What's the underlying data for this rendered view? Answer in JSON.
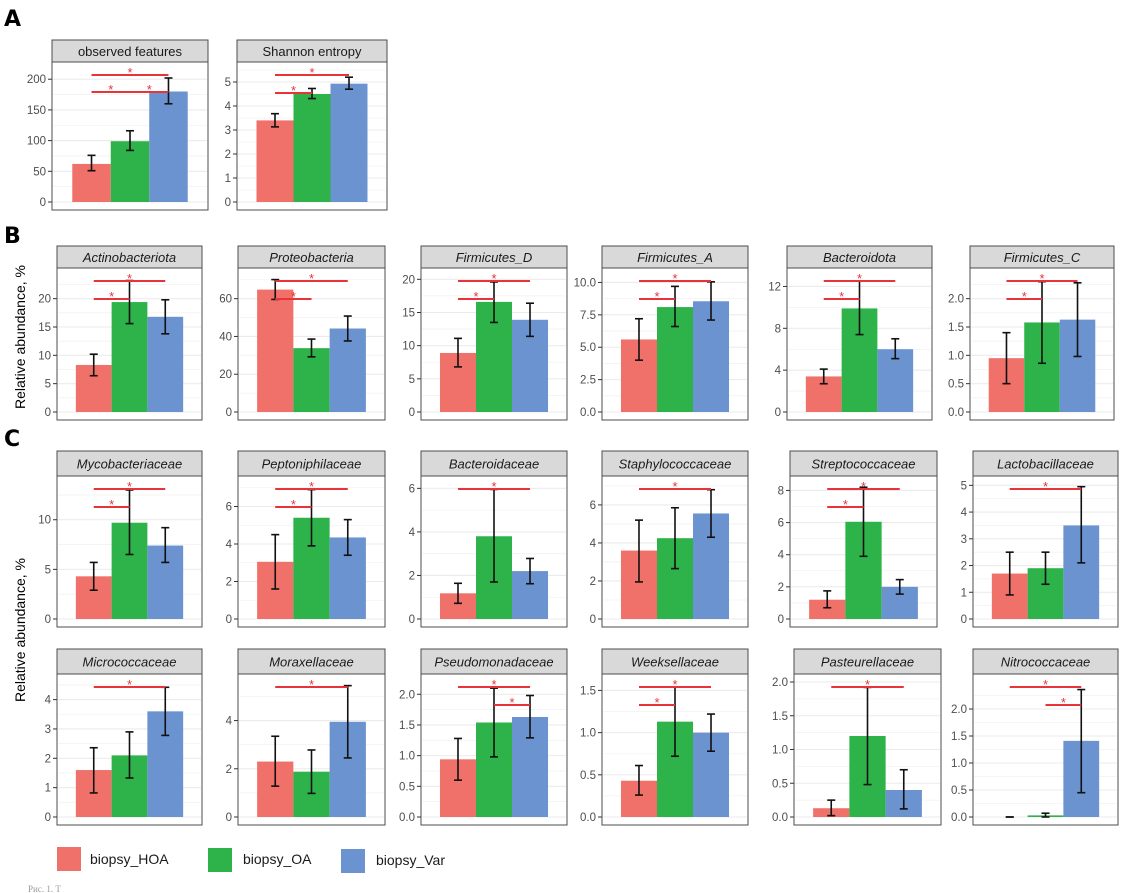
{
  "figure": {
    "panel_labels": [
      "A",
      "B",
      "C"
    ],
    "y_axis_label": "Relative abundance, %",
    "caption_fragment": "Рис. 1. Т",
    "colors": {
      "biopsy_HOA": "#F0706A",
      "biopsy_OA": "#2DB34A",
      "biopsy_Var": "#6B93D0",
      "significance": "#E8333A"
    }
  },
  "legend": [
    {
      "label": "biopsy_HOA",
      "color": "#F0706A"
    },
    {
      "label": "biopsy_OA",
      "color": "#2DB34A"
    },
    {
      "label": "biopsy_Var",
      "color": "#6B93D0"
    }
  ],
  "chart_data": [
    {
      "type": "bar",
      "section": "A",
      "title": "observed  features",
      "italic": false,
      "categories": [
        "biopsy_HOA",
        "biopsy_OA",
        "biopsy_Var"
      ],
      "values": [
        62,
        99,
        180
      ],
      "error_low": [
        51,
        84,
        160
      ],
      "error_high": [
        76,
        116,
        202
      ],
      "yticks": [
        0,
        50,
        100,
        150,
        200
      ],
      "ylim": [
        0,
        215
      ],
      "significance": [
        {
          "pair": [
            0,
            2
          ],
          "label": "*"
        },
        {
          "pair": [
            0,
            1
          ],
          "label": "*"
        },
        {
          "pair": [
            1,
            2
          ],
          "label": "*"
        }
      ]
    },
    {
      "type": "bar",
      "section": "A",
      "title": "Shannon entropy",
      "italic": false,
      "categories": [
        "biopsy_HOA",
        "biopsy_OA",
        "biopsy_Var"
      ],
      "values": [
        3.4,
        4.5,
        4.93
      ],
      "error_low": [
        3.13,
        4.31,
        4.7
      ],
      "error_high": [
        3.68,
        4.73,
        5.2
      ],
      "yticks": [
        0,
        1,
        2,
        3,
        4,
        5
      ],
      "ylim": [
        0,
        5.5
      ],
      "significance": [
        {
          "pair": [
            0,
            2
          ],
          "label": "*"
        },
        {
          "pair": [
            0,
            1
          ],
          "label": "*"
        }
      ]
    },
    {
      "type": "bar",
      "section": "B",
      "title": "Actinobacteriota",
      "italic": true,
      "categories": [
        "biopsy_HOA",
        "biopsy_OA",
        "biopsy_Var"
      ],
      "values": [
        8.3,
        19.4,
        16.8
      ],
      "error_low": [
        6.4,
        15.6,
        13.8
      ],
      "error_high": [
        10.2,
        23.2,
        19.8
      ],
      "yticks": [
        0,
        5,
        10,
        15,
        20
      ],
      "ylim": [
        0,
        24
      ],
      "significance": [
        {
          "pair": [
            0,
            2
          ],
          "label": "*"
        },
        {
          "pair": [
            0,
            1
          ],
          "label": "*"
        }
      ]
    },
    {
      "type": "bar",
      "section": "B",
      "title": "Proteobacteria",
      "italic": true,
      "categories": [
        "biopsy_HOA",
        "biopsy_OA",
        "biopsy_Var"
      ],
      "values": [
        64.8,
        33.8,
        44.2
      ],
      "error_low": [
        59.6,
        29.2,
        37.6
      ],
      "error_high": [
        70.1,
        38.6,
        50.8
      ],
      "yticks": [
        0,
        20,
        40,
        60
      ],
      "ylim": [
        0,
        72
      ],
      "significance": [
        {
          "pair": [
            0,
            2
          ],
          "label": "*"
        },
        {
          "pair": [
            0,
            1
          ],
          "label": "*"
        }
      ]
    },
    {
      "type": "bar",
      "section": "B",
      "title": "Firmicutes_D",
      "italic": true,
      "categories": [
        "biopsy_HOA",
        "biopsy_OA",
        "biopsy_Var"
      ],
      "values": [
        8.9,
        16.6,
        13.9
      ],
      "error_low": [
        6.8,
        13.5,
        11.4
      ],
      "error_high": [
        11.1,
        19.6,
        16.4
      ],
      "yticks": [
        0,
        5,
        10,
        15,
        20
      ],
      "ylim": [
        0,
        20.5
      ],
      "significance": [
        {
          "pair": [
            0,
            2
          ],
          "label": "*"
        },
        {
          "pair": [
            0,
            1
          ],
          "label": "*"
        }
      ]
    },
    {
      "type": "bar",
      "section": "B",
      "title": "Firmicutes_A",
      "italic": true,
      "categories": [
        "biopsy_HOA",
        "biopsy_OA",
        "biopsy_Var"
      ],
      "values": [
        5.6,
        8.1,
        8.55
      ],
      "error_low": [
        4.0,
        6.6,
        7.1
      ],
      "error_high": [
        7.2,
        9.7,
        10.05
      ],
      "yticks": [
        0.0,
        2.5,
        5.0,
        7.5,
        10.0
      ],
      "ytick_labels": [
        "0.0",
        "2.5",
        "5.0",
        "7.5",
        "10.0"
      ],
      "ylim": [
        0,
        10.5
      ],
      "significance": [
        {
          "pair": [
            0,
            2
          ],
          "label": "*"
        },
        {
          "pair": [
            0,
            1
          ],
          "label": "*"
        }
      ]
    },
    {
      "type": "bar",
      "section": "B",
      "title": "Bacteroidota",
      "italic": true,
      "categories": [
        "biopsy_HOA",
        "biopsy_OA",
        "biopsy_Var"
      ],
      "values": [
        3.4,
        9.9,
        6.0
      ],
      "error_low": [
        2.7,
        7.4,
        5.1
      ],
      "error_high": [
        4.1,
        12.5,
        7.0
      ],
      "yticks": [
        0,
        4,
        8,
        12
      ],
      "ylim": [
        0,
        13
      ],
      "significance": [
        {
          "pair": [
            0,
            2
          ],
          "label": "*"
        },
        {
          "pair": [
            0,
            1
          ],
          "label": "*"
        }
      ]
    },
    {
      "type": "bar",
      "section": "B",
      "title": "Firmicutes_C",
      "italic": true,
      "categories": [
        "biopsy_HOA",
        "biopsy_OA",
        "biopsy_Var"
      ],
      "values": [
        0.95,
        1.58,
        1.63
      ],
      "error_low": [
        0.5,
        0.86,
        0.98
      ],
      "error_high": [
        1.4,
        2.3,
        2.28
      ],
      "yticks": [
        0.0,
        0.5,
        1.0,
        1.5,
        2.0
      ],
      "ytick_labels": [
        "0.0",
        "0.5",
        "1.0",
        "1.5",
        "2.0"
      ],
      "ylim": [
        0,
        2.4
      ],
      "significance": [
        {
          "pair": [
            0,
            2
          ],
          "label": "*"
        },
        {
          "pair": [
            0,
            1
          ],
          "label": "*"
        }
      ]
    },
    {
      "type": "bar",
      "section": "C",
      "title": "Mycobacteriaceae",
      "italic": true,
      "categories": [
        "biopsy_HOA",
        "biopsy_OA",
        "biopsy_Var"
      ],
      "values": [
        4.3,
        9.7,
        7.4
      ],
      "error_low": [
        2.9,
        6.5,
        5.7
      ],
      "error_high": [
        5.7,
        13.0,
        9.2
      ],
      "yticks": [
        0,
        5,
        10
      ],
      "ylim": [
        0,
        13.6
      ],
      "significance": [
        {
          "pair": [
            0,
            2
          ],
          "label": "*"
        },
        {
          "pair": [
            0,
            1
          ],
          "label": "*"
        }
      ]
    },
    {
      "type": "bar",
      "section": "C",
      "title": "Peptoniphilaceae",
      "italic": true,
      "categories": [
        "biopsy_HOA",
        "biopsy_OA",
        "biopsy_Var"
      ],
      "values": [
        3.05,
        5.4,
        4.35
      ],
      "error_low": [
        1.6,
        3.9,
        3.4
      ],
      "error_high": [
        4.5,
        6.9,
        5.3
      ],
      "yticks": [
        0,
        2,
        4,
        6
      ],
      "ylim": [
        0,
        7.2
      ],
      "significance": [
        {
          "pair": [
            0,
            2
          ],
          "label": "*"
        },
        {
          "pair": [
            0,
            1
          ],
          "label": "*"
        }
      ]
    },
    {
      "type": "bar",
      "section": "C",
      "title": "Bacteroidaceae",
      "italic": true,
      "categories": [
        "biopsy_HOA",
        "biopsy_OA",
        "biopsy_Var"
      ],
      "values": [
        1.18,
        3.8,
        2.2
      ],
      "error_low": [
        0.72,
        1.7,
        1.62
      ],
      "error_high": [
        1.64,
        5.95,
        2.78
      ],
      "yticks": [
        0,
        2,
        4,
        6
      ],
      "ylim": [
        0,
        6.2
      ],
      "significance": [
        {
          "pair": [
            0,
            2
          ],
          "label": "*"
        }
      ]
    },
    {
      "type": "bar",
      "section": "C",
      "title": "Staphylococcaceae",
      "italic": true,
      "categories": [
        "biopsy_HOA",
        "biopsy_OA",
        "biopsy_Var"
      ],
      "values": [
        3.6,
        4.25,
        5.55
      ],
      "error_low": [
        1.95,
        2.65,
        4.3
      ],
      "error_high": [
        5.2,
        5.85,
        6.8
      ],
      "yticks": [
        0,
        2,
        4,
        6
      ],
      "ylim": [
        0,
        7.1
      ],
      "significance": [
        {
          "pair": [
            0,
            2
          ],
          "label": "*"
        }
      ]
    },
    {
      "type": "bar",
      "section": "C",
      "title": "Streptococcaceae",
      "italic": true,
      "categories": [
        "biopsy_HOA",
        "biopsy_OA",
        "biopsy_Var"
      ],
      "values": [
        1.2,
        6.05,
        2.0
      ],
      "error_low": [
        0.7,
        3.9,
        1.55
      ],
      "error_high": [
        1.75,
        8.2,
        2.45
      ],
      "yticks": [
        0,
        2,
        4,
        6,
        8
      ],
      "ylim": [
        0,
        8.4
      ],
      "significance": [
        {
          "pair": [
            0,
            2
          ],
          "label": "*"
        },
        {
          "pair": [
            0,
            1
          ],
          "label": "*"
        }
      ]
    },
    {
      "type": "bar",
      "section": "C",
      "title": "Lactobacillaceae",
      "italic": true,
      "categories": [
        "biopsy_HOA",
        "biopsy_OA",
        "biopsy_Var"
      ],
      "values": [
        1.7,
        1.9,
        3.5
      ],
      "error_low": [
        0.9,
        1.3,
        2.1
      ],
      "error_high": [
        2.5,
        2.5,
        4.95
      ],
      "yticks": [
        0,
        1,
        2,
        3,
        4,
        5
      ],
      "ylim": [
        0,
        5.05
      ],
      "significance": [
        {
          "pair": [
            0,
            2
          ],
          "label": "*"
        }
      ]
    },
    {
      "type": "bar",
      "section": "C",
      "title": "Micrococcaceae",
      "italic": true,
      "categories": [
        "biopsy_HOA",
        "biopsy_OA",
        "biopsy_Var"
      ],
      "values": [
        1.6,
        2.1,
        3.6
      ],
      "error_low": [
        0.82,
        1.33,
        2.78
      ],
      "error_high": [
        2.36,
        2.9,
        4.42
      ],
      "yticks": [
        0,
        1,
        2,
        3,
        4
      ],
      "ylim": [
        0,
        4.6
      ],
      "significance": [
        {
          "pair": [
            0,
            2
          ],
          "label": "*"
        }
      ]
    },
    {
      "type": "bar",
      "section": "C",
      "title": "Moraxellaceae",
      "italic": true,
      "categories": [
        "biopsy_HOA",
        "biopsy_OA",
        "biopsy_Var"
      ],
      "values": [
        2.3,
        1.88,
        3.95
      ],
      "error_low": [
        1.28,
        0.98,
        2.45
      ],
      "error_high": [
        3.35,
        2.78,
        5.45
      ],
      "yticks": [
        0,
        2,
        4
      ],
      "ylim": [
        0,
        5.6
      ],
      "significance": [
        {
          "pair": [
            0,
            2
          ],
          "label": "*"
        }
      ]
    },
    {
      "type": "bar",
      "section": "C",
      "title": "Pseudomonadaceae",
      "italic": true,
      "categories": [
        "biopsy_HOA",
        "biopsy_OA",
        "biopsy_Var"
      ],
      "values": [
        0.94,
        1.54,
        1.63
      ],
      "error_low": [
        0.6,
        0.98,
        1.29
      ],
      "error_high": [
        1.28,
        2.1,
        1.98
      ],
      "yticks": [
        0.0,
        0.5,
        1.0,
        1.5,
        2.0
      ],
      "ytick_labels": [
        "0.0",
        "0.5",
        "1.0",
        "1.5",
        "2.0"
      ],
      "ylim": [
        0,
        2.2
      ],
      "significance": [
        {
          "pair": [
            0,
            2
          ],
          "label": "*"
        },
        {
          "pair": [
            1,
            2
          ],
          "label": "*"
        }
      ]
    },
    {
      "type": "bar",
      "section": "C",
      "title": "Weeksellaceae",
      "italic": true,
      "categories": [
        "biopsy_HOA",
        "biopsy_OA",
        "biopsy_Var"
      ],
      "values": [
        0.43,
        1.13,
        1.0
      ],
      "error_low": [
        0.26,
        0.72,
        0.78
      ],
      "error_high": [
        0.61,
        1.54,
        1.22
      ],
      "yticks": [
        0.0,
        0.5,
        1.0,
        1.5
      ],
      "ytick_labels": [
        "0.0",
        "0.5",
        "1.0",
        "1.5"
      ],
      "ylim": [
        0,
        1.6
      ],
      "significance": [
        {
          "pair": [
            0,
            2
          ],
          "label": "*"
        },
        {
          "pair": [
            0,
            1
          ],
          "label": "*"
        }
      ]
    },
    {
      "type": "bar",
      "section": "C",
      "title": "Pasteurellaceae",
      "italic": true,
      "categories": [
        "biopsy_HOA",
        "biopsy_OA",
        "biopsy_Var"
      ],
      "values": [
        0.13,
        1.2,
        0.4
      ],
      "error_low": [
        0.02,
        0.48,
        0.12
      ],
      "error_high": [
        0.25,
        1.92,
        0.7
      ],
      "yticks": [
        0.0,
        0.5,
        1.0,
        1.5,
        2.0
      ],
      "ytick_labels": [
        "0.0",
        "0.5",
        "1.0",
        "1.5",
        "2.0"
      ],
      "ylim": [
        0,
        2.0
      ],
      "significance": [
        {
          "pair": [
            0,
            2
          ],
          "label": "*"
        }
      ]
    },
    {
      "type": "bar",
      "section": "C",
      "title": "Nitrococcaceae",
      "italic": true,
      "categories": [
        "biopsy_HOA",
        "biopsy_OA",
        "biopsy_Var"
      ],
      "values": [
        0.0,
        0.03,
        1.41
      ],
      "error_low": [
        0.0,
        0.0,
        0.45
      ],
      "error_high": [
        0.0,
        0.07,
        2.36
      ],
      "yticks": [
        0.0,
        0.5,
        1.0,
        1.5,
        2.0
      ],
      "ytick_labels": [
        "0.0",
        "0.5",
        "1.0",
        "1.5",
        "2.0"
      ],
      "ylim": [
        0,
        2.5
      ],
      "significance": [
        {
          "pair": [
            0,
            2
          ],
          "label": "*"
        },
        {
          "pair": [
            1,
            2
          ],
          "label": "*"
        }
      ]
    }
  ]
}
